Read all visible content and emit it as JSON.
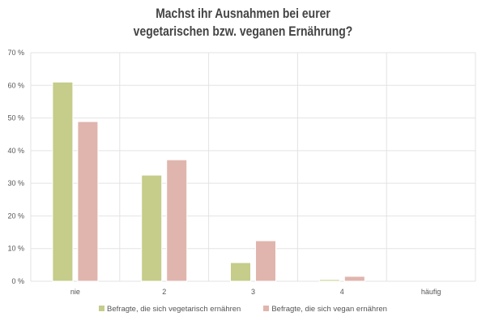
{
  "chart_data": {
    "type": "bar",
    "title_line1": "Machst ihr Ausnahmen bei eurer",
    "title_line2": "vegetarischen bzw. veganen Ernährung?",
    "categories": [
      "nie",
      "2",
      "3",
      "4",
      "häufig"
    ],
    "series": [
      {
        "name": "Befragte, die sich vegetarisch ernähren",
        "color": "#c6cc8a",
        "values": [
          61.0,
          32.5,
          5.7,
          0.5,
          0
        ]
      },
      {
        "name": "Befragte, die sich vegan ernähren",
        "color": "#e0b5ad",
        "values": [
          48.9,
          37.2,
          12.4,
          1.5,
          0
        ]
      }
    ],
    "ylim": [
      0,
      70
    ],
    "yticks": [
      "0 %",
      "10 %",
      "20 %",
      "30 %",
      "40 %",
      "50 %",
      "60 %",
      "70 %"
    ],
    "grid": true,
    "legend": "bottom"
  }
}
